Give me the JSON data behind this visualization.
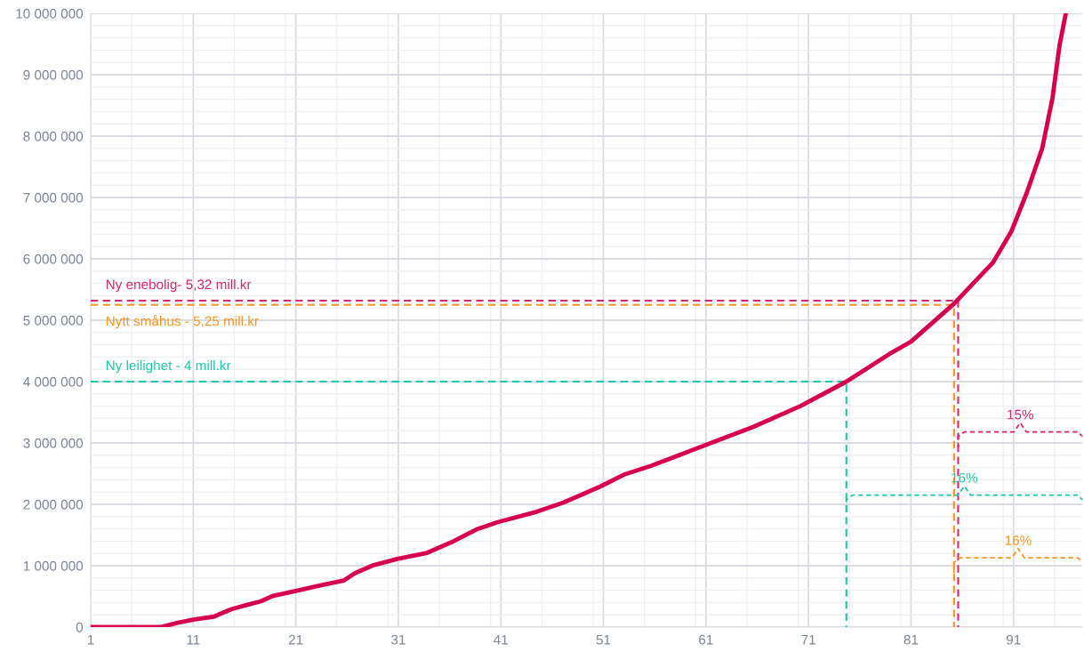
{
  "chart_data": {
    "type": "line",
    "x": [
      1,
      7.8,
      9.5,
      11,
      13,
      14.7,
      16.2,
      17.6,
      18.8,
      21,
      23.4,
      25.7,
      26.8,
      28.6,
      30.9,
      33.8,
      36.4,
      38.6,
      40.7,
      44.5,
      47.1,
      50.7,
      53.1,
      55.7,
      60.7,
      65.6,
      70.2,
      74.7,
      78.9,
      81,
      85.2,
      89,
      90.8,
      92.3,
      93.8,
      94.8,
      95.5,
      96.1
    ],
    "series": [
      {
        "color": "#d6004f",
        "values": [
          0,
          0,
          70000,
          120000,
          170000,
          290000,
          360000,
          420000,
          510000,
          590000,
          680000,
          760000,
          880000,
          1010000,
          1110000,
          1210000,
          1400000,
          1590000,
          1710000,
          1880000,
          2030000,
          2290000,
          2490000,
          2630000,
          2950000,
          3260000,
          3600000,
          4000000,
          4450000,
          4650000,
          5270000,
          5940000,
          6450000,
          7080000,
          7800000,
          8620000,
          9490000,
          10000000
        ]
      },
      {
        "color": "#d6266e",
        "x": [
          1,
          85.6,
          85.6
        ],
        "values": [
          5320000,
          5320000,
          0
        ],
        "line_style": "dashed"
      },
      {
        "color": "#f7941d",
        "x": [
          1,
          85.2,
          85.2
        ],
        "values": [
          5250000,
          5250000,
          0
        ],
        "line_style": "dashed"
      },
      {
        "color": "#1fc5a8",
        "x": [
          1,
          74.7,
          74.7
        ],
        "values": [
          4000000,
          4000000,
          0
        ],
        "line_style": "dashed"
      }
    ],
    "annotations": [
      "Ny enebolig- 5,32 mill.kr",
      "Nytt småhus - 5,25 mill.kr",
      "Ny leilighet - 4 mill.kr",
      "15%",
      "16%",
      "16%"
    ],
    "xlim": [
      1,
      97.7
    ],
    "xticks": [
      1,
      11,
      21,
      31,
      41,
      51,
      61,
      71,
      81,
      91
    ],
    "ylim": [
      0,
      10000000
    ],
    "yticks": [
      0,
      {
        "value": 1000000,
        "label": "1 000 000"
      },
      {
        "value": 2000000,
        "label": "2 000 000"
      },
      {
        "value": 3000000,
        "label": "3 000 000"
      },
      {
        "value": 4000000,
        "label": "4 000 000"
      },
      {
        "value": 5000000,
        "label": "5 000 000"
      },
      {
        "value": 6000000,
        "label": "6 000 000"
      },
      {
        "value": 7000000,
        "label": "7 000 000"
      },
      {
        "value": 8000000,
        "label": "8 000 000"
      },
      {
        "value": 9000000,
        "label": "9 000 000"
      },
      {
        "value": 10000000,
        "label": "10 000 000"
      }
    ],
    "grid": true,
    "marker": "none",
    "line_style": "solid"
  }
}
